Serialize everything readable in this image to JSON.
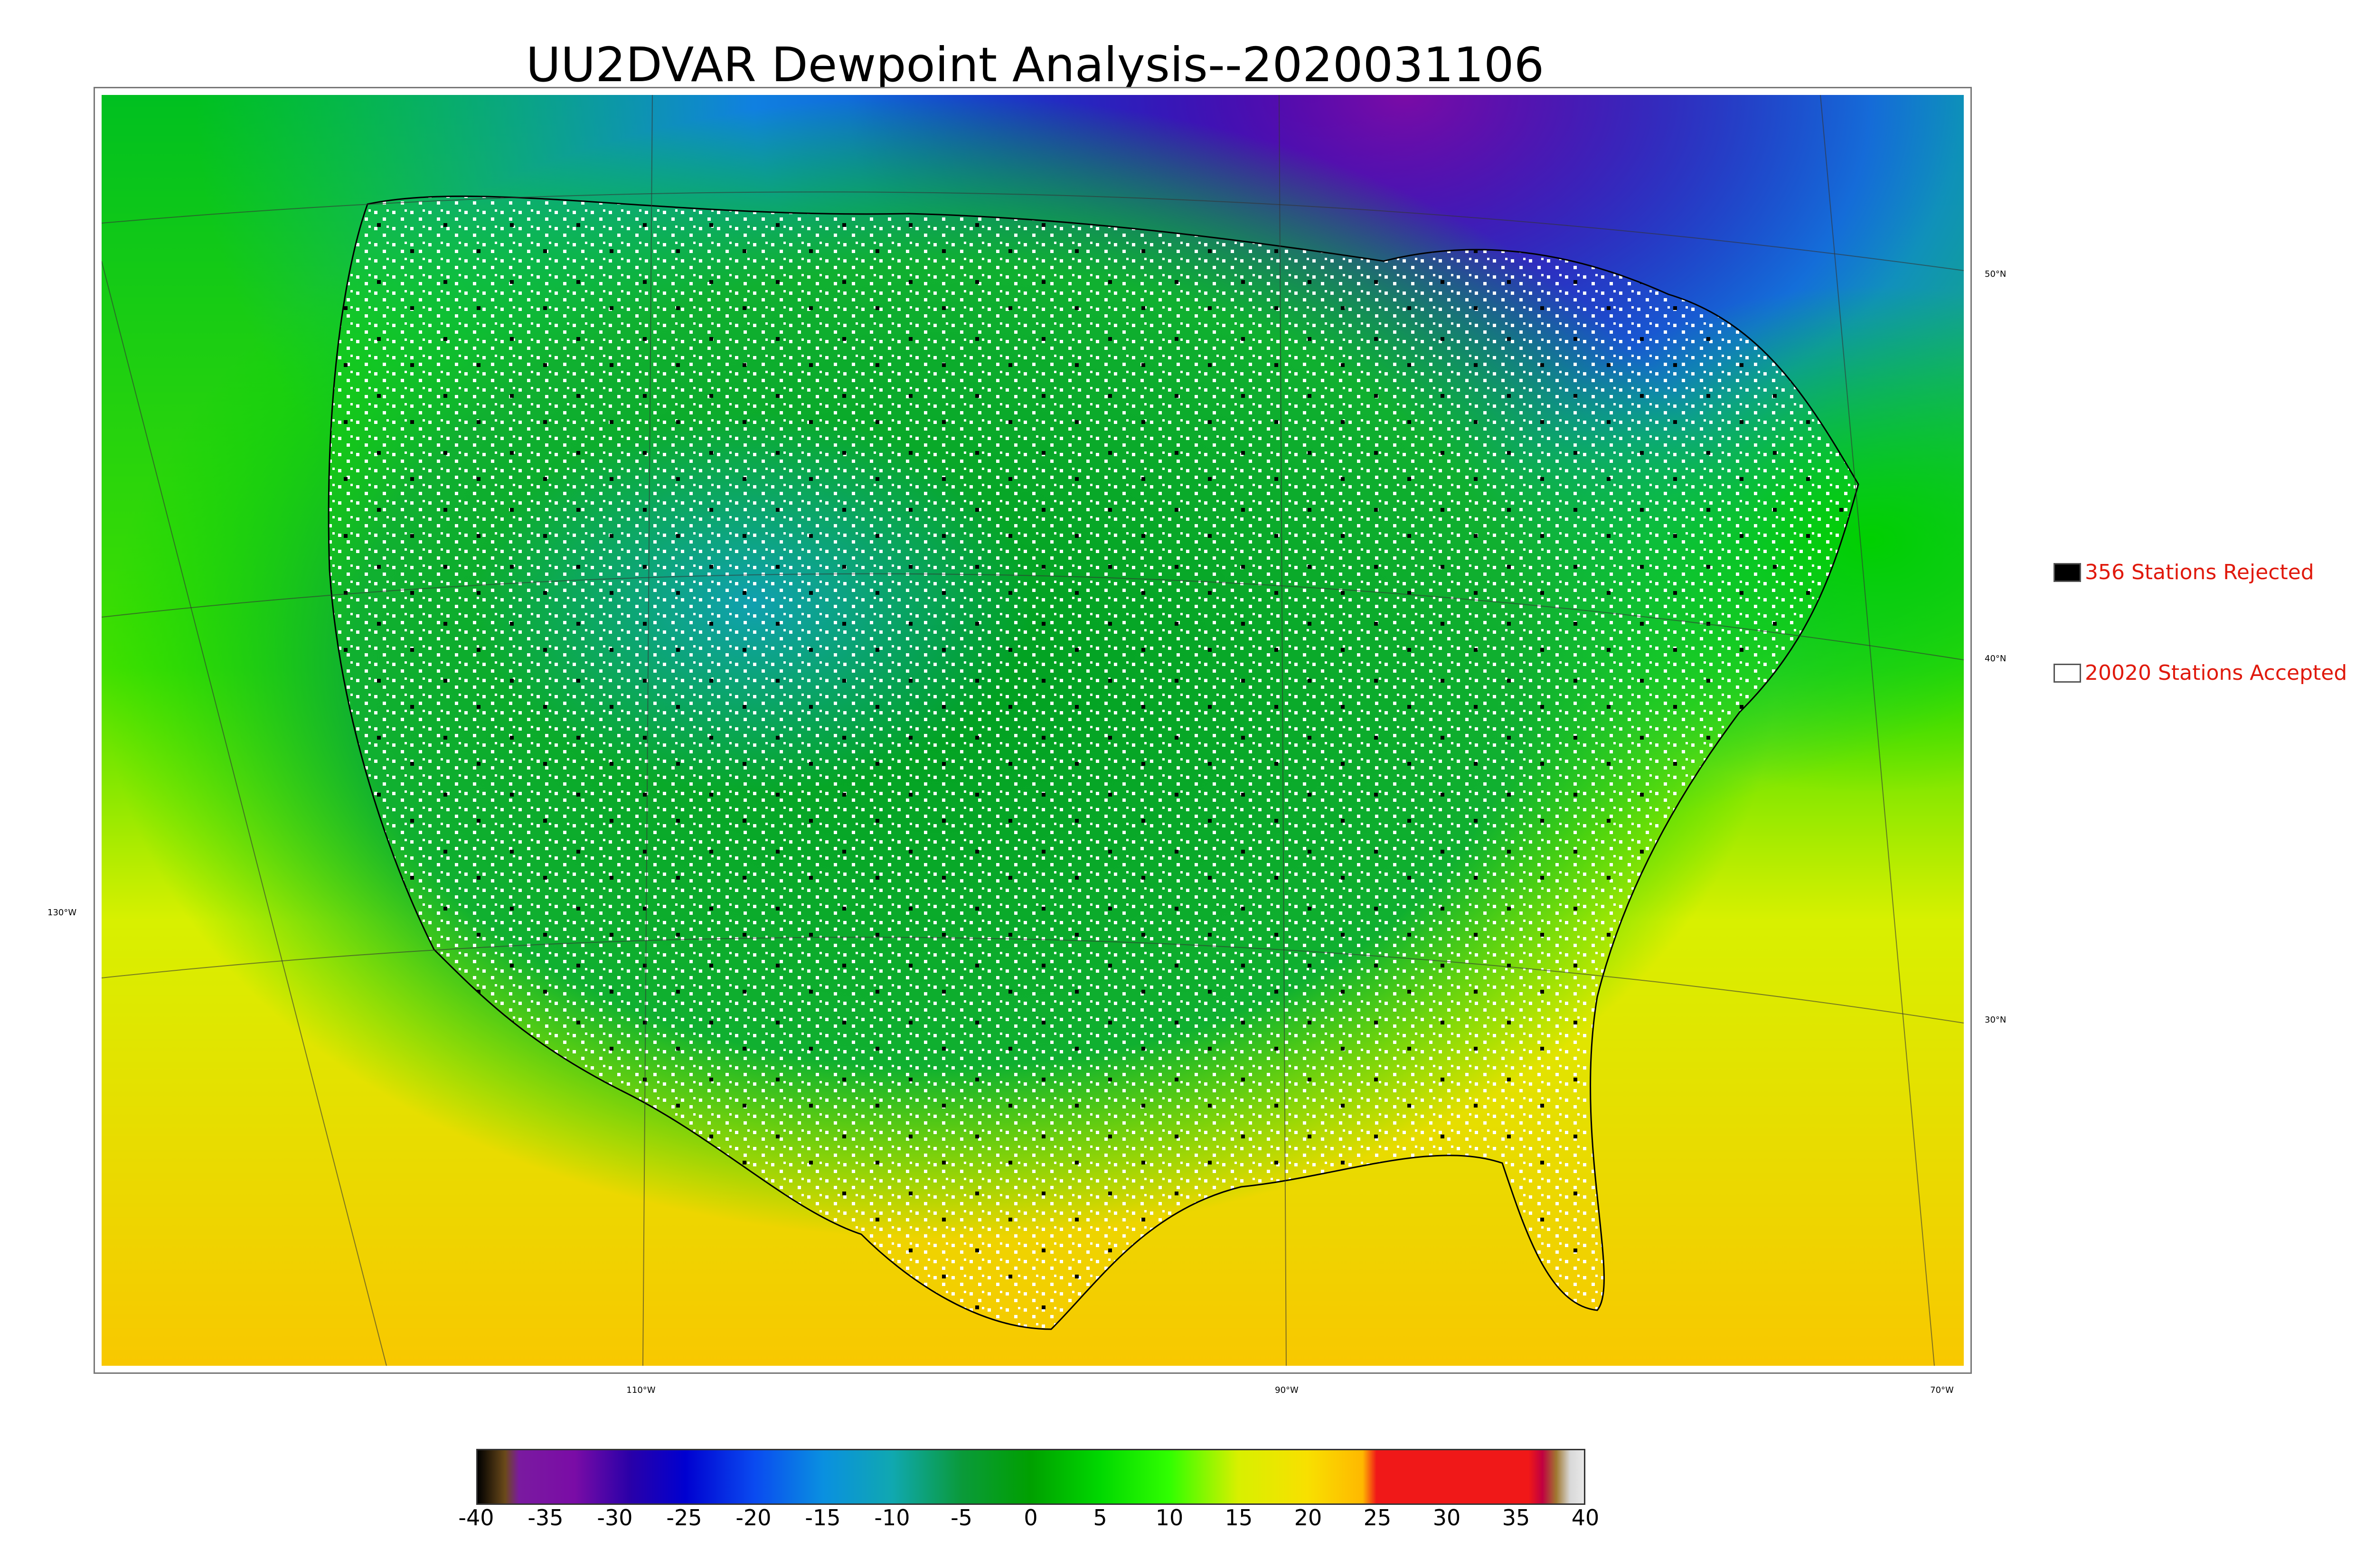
{
  "title": "UU2DVAR Dewpoint Analysis--2020031106",
  "map": {
    "longitude_labels": [
      {
        "text": "110°W",
        "value": -110
      },
      {
        "text": "90°W",
        "value": -90
      },
      {
        "text": "70°W",
        "value": -70
      },
      {
        "text": "130°W",
        "value": -130
      }
    ],
    "latitude_labels": [
      {
        "text": "50°N",
        "value": 50
      },
      {
        "text": "40°N",
        "value": 40
      },
      {
        "text": "30°N",
        "value": 30
      }
    ]
  },
  "legend": {
    "rejected": {
      "label": "356 Stations Rejected",
      "swatch_color": "#000000"
    },
    "accepted": {
      "label": "20020 Stations Accepted",
      "swatch_color": "#ffffff"
    },
    "text_color": "#e0190c"
  },
  "colorbar": {
    "min": -40,
    "max": 40,
    "ticks": [
      "-40",
      "-35",
      "-30",
      "-25",
      "-20",
      "-15",
      "-10",
      "-5",
      "0",
      "5",
      "10",
      "15",
      "20",
      "25",
      "30",
      "35",
      "40"
    ],
    "stops": [
      {
        "value": -40,
        "color": "#000000"
      },
      {
        "value": -38,
        "color": "#6b4a1a"
      },
      {
        "value": -37,
        "color": "#7a1aa0"
      },
      {
        "value": -33,
        "color": "#7a0ca6"
      },
      {
        "value": -29,
        "color": "#2a00a8"
      },
      {
        "value": -25,
        "color": "#0000d0"
      },
      {
        "value": -20,
        "color": "#0a4af0"
      },
      {
        "value": -15,
        "color": "#0a90e0"
      },
      {
        "value": -10,
        "color": "#10a8b0"
      },
      {
        "value": -5,
        "color": "#0a9a3a"
      },
      {
        "value": 0,
        "color": "#00a000"
      },
      {
        "value": 5,
        "color": "#00d800"
      },
      {
        "value": 10,
        "color": "#30ff00"
      },
      {
        "value": 15,
        "color": "#d8f000"
      },
      {
        "value": 20,
        "color": "#f8e000"
      },
      {
        "value": 24,
        "color": "#ffb800"
      },
      {
        "value": 25,
        "color": "#f01818"
      },
      {
        "value": 36,
        "color": "#f01818"
      },
      {
        "value": 37,
        "color": "#c00040"
      },
      {
        "value": 38,
        "color": "#a07830"
      },
      {
        "value": 39,
        "color": "#d8d8d8"
      },
      {
        "value": 40,
        "color": "#e8e8e8"
      }
    ]
  }
}
